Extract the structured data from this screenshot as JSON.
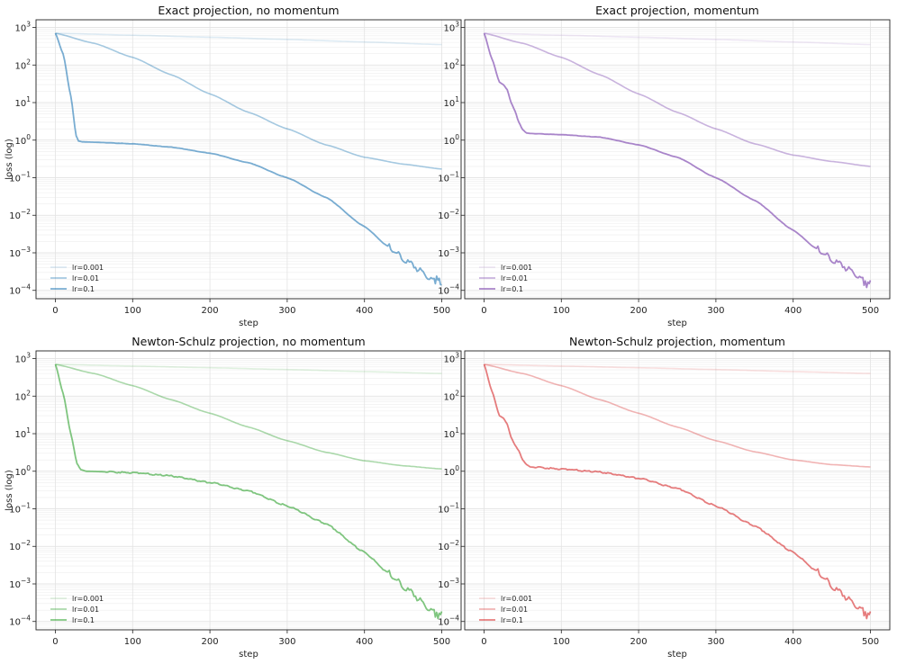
{
  "chart_data": [
    {
      "type": "line",
      "title": "Exact projection, no momentum",
      "xlabel": "step",
      "ylabel": "loss (log)",
      "yscale": "log",
      "xlim": [
        -25,
        525
      ],
      "ylim": [
        6e-05,
        1600
      ],
      "xticks": [
        0,
        100,
        200,
        300,
        400,
        500
      ],
      "yticks": [
        0.0001,
        0.001,
        0.01,
        0.1,
        1,
        10,
        100,
        1000
      ],
      "legend_position": "lower-left",
      "series": [
        {
          "name": "lr=0.001",
          "color": "#1f77b4",
          "opacity": 0.15,
          "x": [
            0,
            100,
            200,
            300,
            400,
            500
          ],
          "y": [
            700,
            620,
            550,
            480,
            410,
            350
          ]
        },
        {
          "name": "lr=0.01",
          "color": "#1f77b4",
          "opacity": 0.4,
          "x": [
            0,
            50,
            100,
            150,
            200,
            250,
            300,
            350,
            400,
            450,
            500
          ],
          "y": [
            700,
            380,
            160,
            55,
            17,
            5.5,
            2,
            0.75,
            0.35,
            0.23,
            0.17
          ]
        },
        {
          "name": "lr=0.1",
          "color": "#1f77b4",
          "opacity": 0.6,
          "x": [
            0,
            10,
            20,
            27,
            30,
            35,
            50,
            100,
            150,
            200,
            250,
            300,
            350,
            400,
            430,
            460,
            480,
            490,
            495,
            500
          ],
          "y": [
            700,
            200,
            15,
            1.3,
            0.95,
            0.9,
            0.88,
            0.8,
            0.65,
            0.45,
            0.25,
            0.1,
            0.03,
            0.005,
            0.0015,
            0.0005,
            0.00025,
            0.00017,
            0.00022,
            0.00012
          ]
        }
      ]
    },
    {
      "type": "line",
      "title": "Exact projection, momentum",
      "xlabel": "step",
      "ylabel": "",
      "yscale": "log",
      "xlim": [
        -25,
        525
      ],
      "ylim": [
        6e-05,
        1600
      ],
      "xticks": [
        0,
        100,
        200,
        300,
        400,
        500
      ],
      "yticks": [
        0.0001,
        0.001,
        0.01,
        0.1,
        1,
        10,
        100,
        1000
      ],
      "legend_position": "lower-left",
      "series": [
        {
          "name": "lr=0.001",
          "color": "#9467bd",
          "opacity": 0.15,
          "x": [
            0,
            100,
            200,
            300,
            400,
            500
          ],
          "y": [
            700,
            620,
            550,
            480,
            410,
            350
          ]
        },
        {
          "name": "lr=0.01",
          "color": "#9467bd",
          "opacity": 0.5,
          "x": [
            0,
            50,
            100,
            150,
            200,
            250,
            300,
            350,
            400,
            450,
            500
          ],
          "y": [
            700,
            380,
            160,
            55,
            17,
            5.5,
            2,
            0.8,
            0.4,
            0.27,
            0.2
          ]
        },
        {
          "name": "lr=0.1",
          "color": "#9467bd",
          "opacity": 0.8,
          "x": [
            0,
            10,
            20,
            25,
            30,
            35,
            40,
            45,
            50,
            55,
            60,
            100,
            150,
            200,
            250,
            300,
            350,
            400,
            430,
            460,
            480,
            490,
            495,
            500
          ],
          "y": [
            700,
            150,
            35,
            30,
            22,
            10,
            6,
            3,
            1.9,
            1.55,
            1.5,
            1.4,
            1.2,
            0.75,
            0.35,
            0.1,
            0.025,
            0.004,
            0.0013,
            0.0005,
            0.00028,
            0.00018,
            0.00014,
            0.00016
          ]
        }
      ]
    },
    {
      "type": "line",
      "title": "Newton-Schulz projection, no momentum",
      "xlabel": "step",
      "ylabel": "loss (log)",
      "yscale": "log",
      "xlim": [
        -25,
        525
      ],
      "ylim": [
        6e-05,
        1600
      ],
      "xticks": [
        0,
        100,
        200,
        300,
        400,
        500
      ],
      "yticks": [
        0.0001,
        0.001,
        0.01,
        0.1,
        1,
        10,
        100,
        1000
      ],
      "legend_position": "lower-left",
      "series": [
        {
          "name": "lr=0.001",
          "color": "#2ca02c",
          "opacity": 0.15,
          "x": [
            0,
            100,
            200,
            300,
            400,
            500
          ],
          "y": [
            700,
            630,
            570,
            510,
            450,
            400
          ]
        },
        {
          "name": "lr=0.01",
          "color": "#2ca02c",
          "opacity": 0.4,
          "x": [
            0,
            50,
            100,
            150,
            200,
            250,
            300,
            350,
            400,
            450,
            500
          ],
          "y": [
            700,
            400,
            190,
            80,
            35,
            15,
            6.5,
            3.2,
            1.9,
            1.4,
            1.15
          ]
        },
        {
          "name": "lr=0.1",
          "color": "#2ca02c",
          "opacity": 0.6,
          "x": [
            0,
            10,
            20,
            28,
            33,
            40,
            100,
            150,
            200,
            250,
            300,
            350,
            400,
            430,
            460,
            480,
            490,
            495,
            500
          ],
          "y": [
            700,
            120,
            10,
            1.6,
            1.1,
            1.0,
            0.92,
            0.75,
            0.5,
            0.3,
            0.12,
            0.04,
            0.007,
            0.002,
            0.0006,
            0.00025,
            0.00017,
            0.00014,
            0.00016
          ]
        }
      ]
    },
    {
      "type": "line",
      "title": "Newton-Schulz projection, momentum",
      "xlabel": "step",
      "ylabel": "",
      "yscale": "log",
      "xlim": [
        -25,
        525
      ],
      "ylim": [
        6e-05,
        1600
      ],
      "xticks": [
        0,
        100,
        200,
        300,
        400,
        500
      ],
      "yticks": [
        0.0001,
        0.001,
        0.01,
        0.1,
        1,
        10,
        100,
        1000
      ],
      "legend_position": "lower-left",
      "series": [
        {
          "name": "lr=0.001",
          "color": "#d62728",
          "opacity": 0.15,
          "x": [
            0,
            100,
            200,
            300,
            400,
            500
          ],
          "y": [
            700,
            630,
            570,
            510,
            450,
            400
          ]
        },
        {
          "name": "lr=0.01",
          "color": "#d62728",
          "opacity": 0.35,
          "x": [
            0,
            50,
            100,
            150,
            200,
            250,
            300,
            350,
            400,
            450,
            500
          ],
          "y": [
            700,
            400,
            190,
            80,
            35,
            15,
            6.5,
            3.3,
            2,
            1.5,
            1.3
          ]
        },
        {
          "name": "lr=0.1",
          "color": "#d62728",
          "opacity": 0.6,
          "x": [
            0,
            10,
            20,
            25,
            30,
            35,
            40,
            45,
            50,
            55,
            60,
            100,
            150,
            200,
            250,
            300,
            350,
            400,
            430,
            460,
            480,
            490,
            495,
            500
          ],
          "y": [
            700,
            140,
            30,
            26,
            18,
            8,
            5,
            3.5,
            2,
            1.5,
            1.3,
            1.15,
            0.95,
            0.65,
            0.35,
            0.12,
            0.035,
            0.007,
            0.0022,
            0.0006,
            0.00028,
            0.00019,
            0.00014,
            0.00016
          ]
        }
      ]
    }
  ]
}
